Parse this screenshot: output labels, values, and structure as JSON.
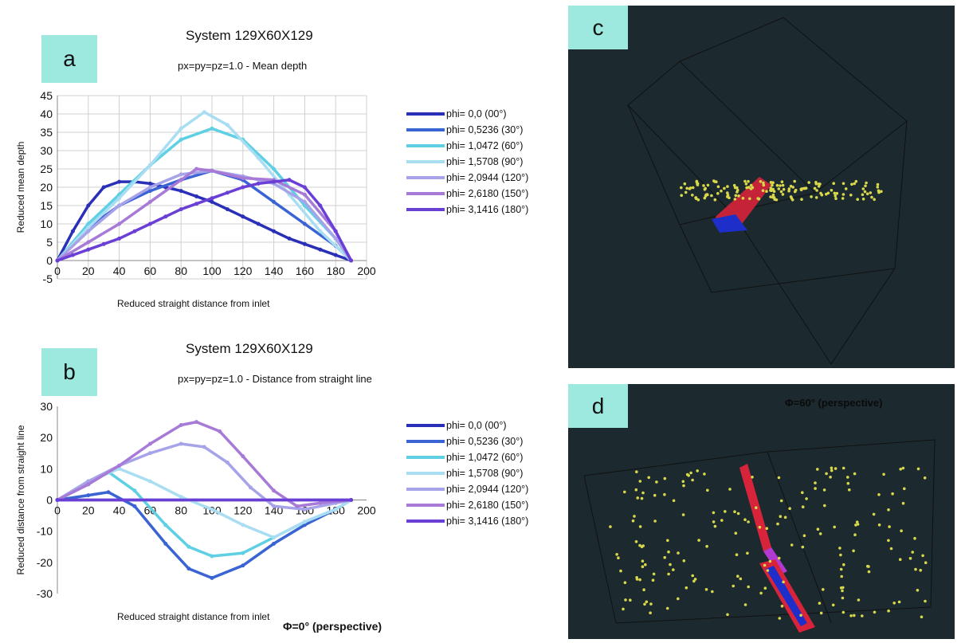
{
  "panels": {
    "a": "a",
    "b": "b",
    "c": "c",
    "d": "d"
  },
  "captions": {
    "bottom": "Φ=0° (perspective)",
    "d": "Φ=60° (perspective)"
  },
  "colors": [
    "#2a2fb8",
    "#3a63d4",
    "#5fd0e4",
    "#a9def2",
    "#a7a3e8",
    "#a87ad8",
    "#6a3fd6"
  ],
  "chart_data": [
    {
      "type": "line",
      "title": "System 129X60X129",
      "subtitle": "px=py=pz=1.0 - Mean depth",
      "xlabel": "Reduced straight distance from inlet",
      "ylabel": "Reduced mean depth",
      "xlim": [
        0,
        200
      ],
      "ylim": [
        -5,
        45
      ],
      "xticks": [
        0,
        20,
        40,
        60,
        80,
        100,
        120,
        140,
        160,
        180,
        200
      ],
      "yticks": [
        -5,
        0,
        5,
        10,
        15,
        20,
        25,
        30,
        35,
        40,
        45
      ],
      "legend_position": "right",
      "grid": true,
      "series": [
        {
          "name": "phi= 0,0 (00°)",
          "x": [
            0,
            10,
            20,
            30,
            40,
            50,
            60,
            70,
            80,
            90,
            100,
            110,
            120,
            130,
            140,
            150,
            160,
            170,
            180,
            190
          ],
          "values": [
            0,
            8,
            15,
            20,
            21.5,
            21.5,
            21,
            20,
            19,
            17.5,
            16,
            14,
            12,
            10,
            8,
            6,
            4.5,
            3,
            1.5,
            0
          ]
        },
        {
          "name": "phi= 0,5236 (30°)",
          "x": [
            0,
            20,
            40,
            60,
            80,
            100,
            120,
            140,
            160,
            180,
            190
          ],
          "values": [
            0,
            9,
            15,
            19,
            22,
            24.5,
            22,
            16,
            10,
            4,
            0
          ]
        },
        {
          "name": "phi= 1,0472 (60°)",
          "x": [
            0,
            20,
            40,
            60,
            80,
            100,
            120,
            140,
            160,
            180,
            190
          ],
          "values": [
            0,
            10,
            18,
            26,
            33,
            36,
            33,
            25,
            15,
            6,
            0
          ]
        },
        {
          "name": "phi= 1,5708 (90°)",
          "x": [
            0,
            20,
            40,
            60,
            80,
            95,
            110,
            130,
            150,
            170,
            190
          ],
          "values": [
            0,
            9,
            17,
            26,
            36,
            40.5,
            37,
            28,
            18,
            8,
            0
          ]
        },
        {
          "name": "phi= 2,0944 (120°)",
          "x": [
            0,
            20,
            40,
            60,
            80,
            100,
            120,
            140,
            160,
            180,
            190
          ],
          "values": [
            0,
            8,
            15,
            20,
            23.5,
            24.5,
            23,
            21,
            16,
            6,
            0
          ]
        },
        {
          "name": "phi= 2,6180 (150°)",
          "x": [
            0,
            20,
            40,
            60,
            80,
            90,
            100,
            120,
            140,
            160,
            180,
            190
          ],
          "values": [
            0,
            5,
            10,
            16,
            22,
            25,
            24.5,
            22.5,
            22,
            18,
            8,
            0
          ]
        },
        {
          "name": "phi= 3,1416 (180°)",
          "x": [
            0,
            10,
            20,
            30,
            40,
            50,
            60,
            70,
            80,
            90,
            100,
            110,
            120,
            130,
            140,
            150,
            160,
            170,
            180,
            190
          ],
          "values": [
            0,
            1.5,
            3,
            4.5,
            6,
            8,
            10,
            12,
            14,
            15.5,
            17,
            18.5,
            20,
            21,
            21.5,
            22,
            20,
            15,
            8,
            0
          ]
        }
      ]
    },
    {
      "type": "line",
      "title": "System 129X60X129",
      "subtitle": "px=py=pz=1.0 - Distance from straight line",
      "xlabel": "Reduced straight distance from inlet",
      "ylabel": "Reduced distance from straight line",
      "xlim": [
        0,
        200
      ],
      "ylim": [
        -30,
        30
      ],
      "xticks": [
        0,
        20,
        40,
        60,
        80,
        100,
        120,
        140,
        160,
        180,
        200
      ],
      "yticks": [
        -30,
        -20,
        -10,
        0,
        10,
        20,
        30
      ],
      "legend_position": "right",
      "grid": false,
      "series": [
        {
          "name": "phi= 0,0 (00°)",
          "x": [
            0,
            190
          ],
          "values": [
            0,
            0
          ]
        },
        {
          "name": "phi= 0,5236 (30°)",
          "x": [
            0,
            20,
            33,
            50,
            70,
            85,
            100,
            120,
            140,
            160,
            180,
            190
          ],
          "values": [
            0,
            1.5,
            2.5,
            -2,
            -14,
            -22,
            -25,
            -21,
            -14,
            -8,
            -3,
            0
          ]
        },
        {
          "name": "phi= 1,0472 (60°)",
          "x": [
            0,
            20,
            33,
            50,
            70,
            85,
            100,
            120,
            140,
            160,
            180,
            190
          ],
          "values": [
            0,
            5,
            9,
            3,
            -8,
            -15,
            -18,
            -17,
            -12,
            -7,
            -3,
            0
          ]
        },
        {
          "name": "phi= 1,5708 (90°)",
          "x": [
            0,
            20,
            40,
            60,
            80,
            100,
            120,
            140,
            160,
            180,
            190
          ],
          "values": [
            0,
            6,
            10,
            6,
            1,
            -3,
            -8,
            -12,
            -7,
            -3,
            0
          ]
        },
        {
          "name": "phi= 2,0944 (120°)",
          "x": [
            0,
            20,
            40,
            60,
            80,
            95,
            110,
            125,
            140,
            160,
            180,
            190
          ],
          "values": [
            0,
            6,
            11,
            15,
            18,
            17,
            12,
            4,
            -2,
            -3,
            -1,
            0
          ]
        },
        {
          "name": "phi= 2,6180 (150°)",
          "x": [
            0,
            20,
            40,
            60,
            80,
            90,
            105,
            120,
            140,
            155,
            170,
            190
          ],
          "values": [
            0,
            5,
            11,
            18,
            24,
            25,
            22,
            14,
            3,
            -2,
            -1,
            0
          ]
        },
        {
          "name": "phi= 3,1416 (180°)",
          "x": [
            0,
            190
          ],
          "values": [
            0,
            0
          ]
        }
      ]
    }
  ]
}
